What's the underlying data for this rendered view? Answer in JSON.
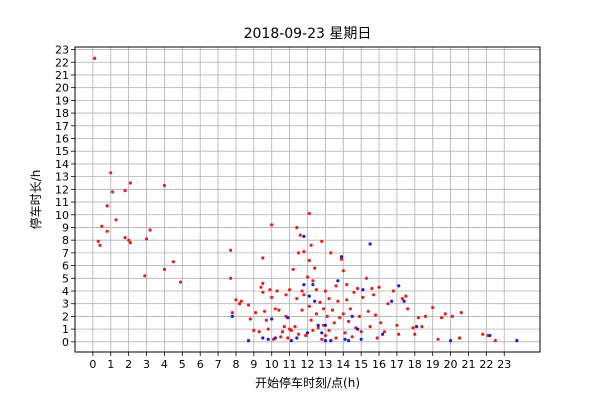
{
  "chart_data": {
    "type": "scatter",
    "title": "2018-09-23 星期日",
    "xlabel": "开始停车时刻/点(h)",
    "ylabel": "停车时长/h",
    "xlim": [
      -1,
      25
    ],
    "ylim": [
      -0.8,
      23.2
    ],
    "xticks": [
      0,
      1,
      2,
      3,
      4,
      5,
      6,
      7,
      8,
      9,
      10,
      11,
      12,
      13,
      14,
      15,
      16,
      17,
      18,
      19,
      20,
      21,
      22,
      23
    ],
    "yticks": [
      0,
      1,
      2,
      3,
      4,
      5,
      6,
      7,
      8,
      9,
      10,
      11,
      12,
      13,
      14,
      15,
      16,
      17,
      18,
      19,
      20,
      21,
      22,
      23
    ],
    "grid": true,
    "colors": {
      "red": "#e8201c",
      "blue": "#1c1cd6"
    },
    "series": [
      {
        "color": "red",
        "points": [
          [
            0.1,
            22.3
          ],
          [
            0.3,
            7.9
          ],
          [
            0.4,
            7.6
          ],
          [
            0.5,
            9.1
          ],
          [
            0.8,
            10.7
          ],
          [
            0.8,
            8.7
          ],
          [
            1.0,
            13.3
          ],
          [
            1.1,
            11.8
          ],
          [
            1.3,
            9.6
          ],
          [
            1.8,
            11.9
          ],
          [
            1.8,
            8.2
          ],
          [
            2.0,
            8.0
          ],
          [
            2.1,
            7.8
          ],
          [
            2.1,
            12.5
          ],
          [
            2.9,
            5.2
          ],
          [
            3.0,
            8.1
          ],
          [
            3.2,
            8.8
          ],
          [
            4.0,
            12.3
          ],
          [
            4.0,
            5.7
          ],
          [
            4.5,
            6.3
          ],
          [
            4.9,
            4.7
          ],
          [
            7.7,
            7.2
          ],
          [
            7.7,
            5.0
          ],
          [
            7.8,
            2.3
          ],
          [
            8.0,
            3.3
          ],
          [
            8.2,
            3.0
          ],
          [
            8.3,
            3.2
          ],
          [
            8.7,
            2.9
          ],
          [
            8.8,
            1.8
          ],
          [
            9.0,
            0.9
          ],
          [
            9.1,
            2.3
          ],
          [
            9.3,
            0.8
          ],
          [
            9.4,
            4.3
          ],
          [
            9.5,
            4.6
          ],
          [
            9.5,
            3.9
          ],
          [
            9.5,
            6.6
          ],
          [
            9.6,
            2.4
          ],
          [
            9.7,
            1.7
          ],
          [
            9.8,
            1.0
          ],
          [
            9.9,
            4.1
          ],
          [
            10.0,
            9.2
          ],
          [
            10.0,
            3.5
          ],
          [
            10.1,
            0.2
          ],
          [
            10.2,
            2.6
          ],
          [
            10.3,
            4.0
          ],
          [
            10.4,
            2.5
          ],
          [
            10.5,
            0.4
          ],
          [
            10.6,
            0.8
          ],
          [
            10.7,
            1.2
          ],
          [
            10.8,
            3.7
          ],
          [
            10.8,
            2.0
          ],
          [
            10.9,
            0.3
          ],
          [
            11.0,
            1.0
          ],
          [
            11.0,
            4.1
          ],
          [
            11.1,
            0.9
          ],
          [
            11.2,
            5.7
          ],
          [
            11.3,
            1.2
          ],
          [
            11.4,
            9.0
          ],
          [
            11.4,
            3.4
          ],
          [
            11.5,
            7.0
          ],
          [
            11.5,
            0.6
          ],
          [
            11.6,
            8.4
          ],
          [
            11.7,
            2.5
          ],
          [
            11.7,
            4.0
          ],
          [
            11.8,
            7.1
          ],
          [
            11.8,
            3.7
          ],
          [
            11.9,
            0.5
          ],
          [
            12.0,
            5.1
          ],
          [
            12.1,
            6.4
          ],
          [
            12.1,
            10.1
          ],
          [
            12.1,
            2.8
          ],
          [
            12.2,
            7.6
          ],
          [
            12.2,
            1.7
          ],
          [
            12.3,
            4.8
          ],
          [
            12.3,
            0.9
          ],
          [
            12.4,
            5.8
          ],
          [
            12.5,
            4.1
          ],
          [
            12.5,
            2.2
          ],
          [
            12.6,
            1.1
          ],
          [
            12.7,
            3.1
          ],
          [
            12.8,
            7.9
          ],
          [
            12.8,
            0.2
          ],
          [
            12.9,
            2.6
          ],
          [
            12.9,
            1.3
          ],
          [
            13.0,
            4.0
          ],
          [
            13.0,
            0.5
          ],
          [
            13.1,
            2.0
          ],
          [
            13.2,
            3.4
          ],
          [
            13.2,
            0.9
          ],
          [
            13.3,
            7.0
          ],
          [
            13.4,
            2.5
          ],
          [
            13.5,
            1.5
          ],
          [
            13.6,
            4.4
          ],
          [
            13.6,
            0.3
          ],
          [
            13.7,
            3.2
          ],
          [
            13.8,
            1.9
          ],
          [
            13.9,
            6.5
          ],
          [
            14.0,
            5.6
          ],
          [
            14.0,
            2.2
          ],
          [
            14.1,
            0.7
          ],
          [
            14.2,
            3.3
          ],
          [
            14.2,
            4.5
          ],
          [
            14.3,
            1.6
          ],
          [
            14.4,
            2.6
          ],
          [
            14.5,
            0.4
          ],
          [
            14.6,
            3.9
          ],
          [
            14.7,
            1.1
          ],
          [
            14.8,
            4.2
          ],
          [
            14.9,
            2.0
          ],
          [
            15.0,
            0.8
          ],
          [
            15.1,
            3.5
          ],
          [
            15.3,
            5.0
          ],
          [
            15.4,
            2.4
          ],
          [
            15.5,
            1.2
          ],
          [
            15.6,
            4.2
          ],
          [
            15.7,
            3.7
          ],
          [
            15.8,
            2.1
          ],
          [
            15.9,
            0.3
          ],
          [
            16.0,
            4.3
          ],
          [
            16.1,
            1.5
          ],
          [
            16.3,
            0.8
          ],
          [
            16.5,
            3.0
          ],
          [
            16.8,
            4.0
          ],
          [
            17.0,
            1.3
          ],
          [
            17.1,
            0.6
          ],
          [
            17.3,
            3.4
          ],
          [
            17.5,
            3.6
          ],
          [
            17.6,
            2.6
          ],
          [
            17.9,
            1.1
          ],
          [
            18.0,
            0.6
          ],
          [
            18.2,
            1.9
          ],
          [
            18.4,
            1.2
          ],
          [
            18.6,
            2.0
          ],
          [
            19.0,
            2.7
          ],
          [
            19.3,
            0.2
          ],
          [
            19.5,
            1.9
          ],
          [
            19.7,
            2.2
          ],
          [
            20.1,
            2.0
          ],
          [
            20.5,
            0.3
          ],
          [
            20.6,
            2.3
          ],
          [
            21.8,
            0.6
          ],
          [
            22.1,
            0.5
          ],
          [
            22.5,
            0.1
          ]
        ]
      },
      {
        "color": "blue",
        "points": [
          [
            7.8,
            2.0
          ],
          [
            8.7,
            0.1
          ],
          [
            9.5,
            0.3
          ],
          [
            9.8,
            0.2
          ],
          [
            10.0,
            1.8
          ],
          [
            10.2,
            0.3
          ],
          [
            10.9,
            1.9
          ],
          [
            11.1,
            0.1
          ],
          [
            11.4,
            0.3
          ],
          [
            11.8,
            8.3
          ],
          [
            11.8,
            4.5
          ],
          [
            12.0,
            0.7
          ],
          [
            12.1,
            3.6
          ],
          [
            12.3,
            4.5
          ],
          [
            12.4,
            3.2
          ],
          [
            12.6,
            1.3
          ],
          [
            12.8,
            0.7
          ],
          [
            13.0,
            0.1
          ],
          [
            13.0,
            1.3
          ],
          [
            13.3,
            0.1
          ],
          [
            13.7,
            4.8
          ],
          [
            13.9,
            6.7
          ],
          [
            14.1,
            0.2
          ],
          [
            14.3,
            0.1
          ],
          [
            14.5,
            2.0
          ],
          [
            14.8,
            1.0
          ],
          [
            15.0,
            0.2
          ],
          [
            15.1,
            4.1
          ],
          [
            15.5,
            7.7
          ],
          [
            16.2,
            0.6
          ],
          [
            16.7,
            3.2
          ],
          [
            17.1,
            4.4
          ],
          [
            17.4,
            3.2
          ],
          [
            18.1,
            1.2
          ],
          [
            20.0,
            0.1
          ],
          [
            22.2,
            0.5
          ],
          [
            23.7,
            0.1
          ]
        ]
      }
    ]
  }
}
